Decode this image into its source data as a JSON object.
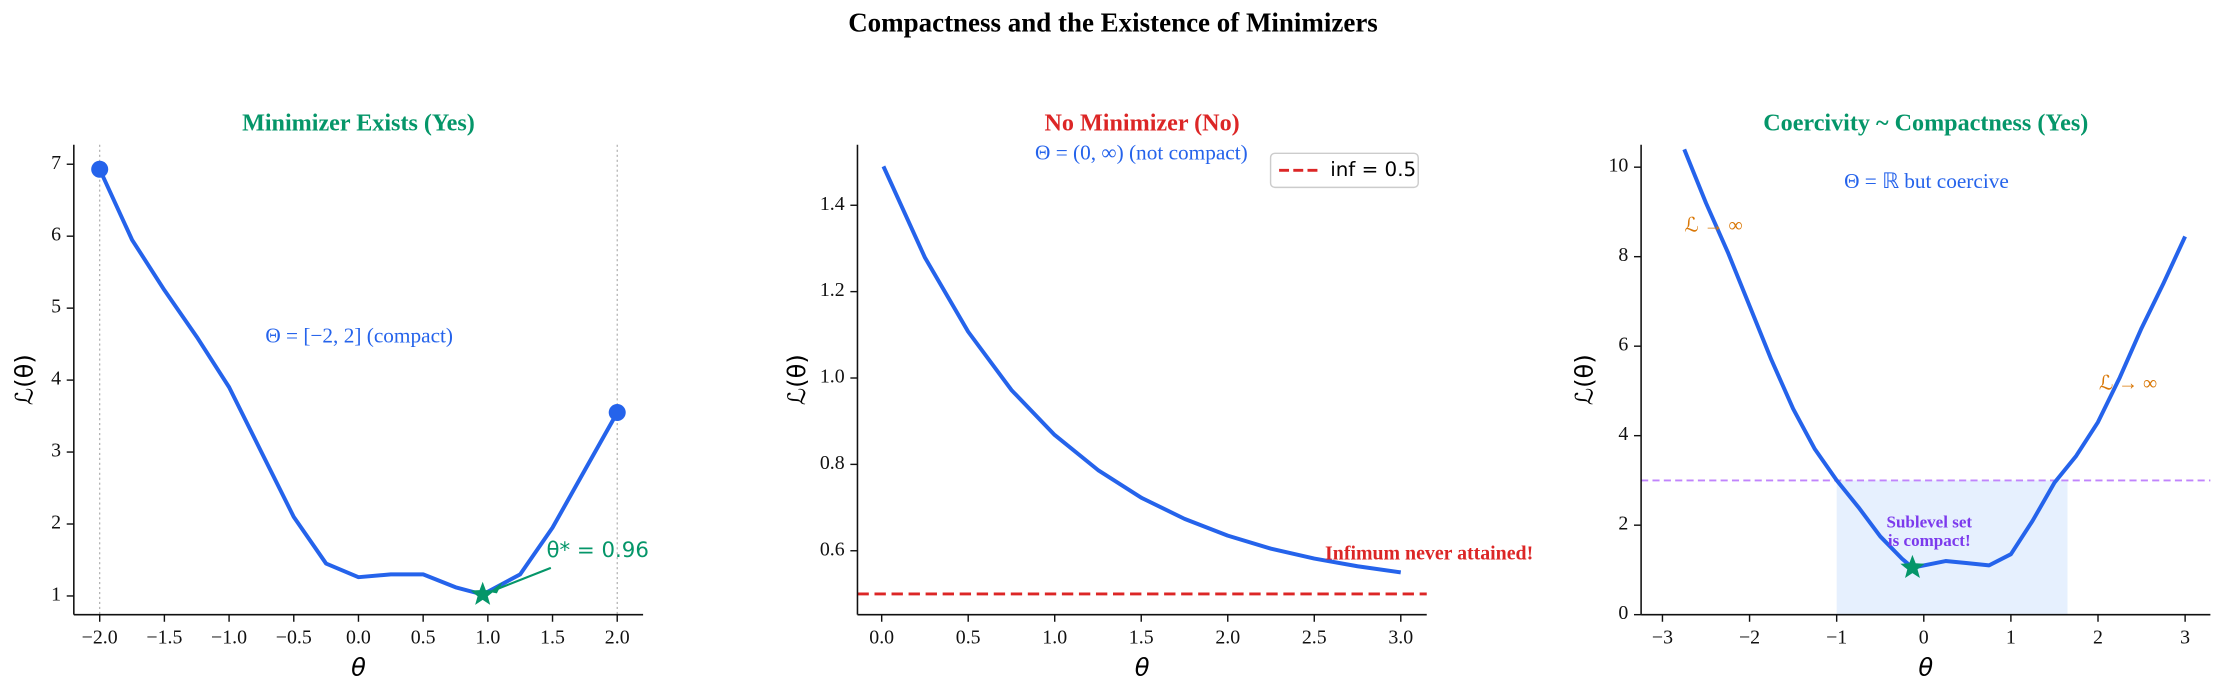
{
  "title": "Compactness and the Existence of Minimizers",
  "chart_data": [
    {
      "type": "line",
      "title": "Minimizer Exists (Yes)",
      "title_color": "#059669",
      "xlabel": "θ",
      "ylabel": "ℒ(θ)",
      "xlim": [
        -2.2,
        2.2
      ],
      "ylim": [
        0.74,
        7.27
      ],
      "xticks": [
        {
          "value": -2,
          "label": "−2.0"
        },
        {
          "value": -1.5,
          "label": "−1.5"
        },
        {
          "value": -1,
          "label": "−1.0"
        },
        {
          "value": -0.5,
          "label": "−0.5"
        },
        {
          "value": 0,
          "label": "0.0"
        },
        0.5,
        {
          "value": 1,
          "label": "1.0"
        },
        1.5,
        {
          "value": 2,
          "label": "2.0"
        }
      ],
      "yticks": [
        1,
        2,
        3,
        4,
        5,
        6,
        7
      ],
      "vlines": [
        -2,
        2
      ],
      "series": [
        {
          "kind": "line",
          "color": "#2563eb",
          "x": [
            -2,
            -1.75,
            -1.5,
            -1.25,
            -1,
            -0.75,
            -0.5,
            -0.25,
            0,
            0.25,
            0.5,
            0.75,
            0.96,
            1.25,
            1.5,
            1.75,
            2
          ],
          "values": [
            6.93,
            5.95,
            5.25,
            4.6,
            3.9,
            3.0,
            2.1,
            1.45,
            1.26,
            1.3,
            1.3,
            1.12,
            1.02,
            1.3,
            1.95,
            2.75,
            3.55
          ]
        },
        {
          "kind": "points",
          "color": "#2563eb",
          "x": [
            -2,
            2
          ],
          "values": [
            6.93,
            3.55
          ]
        },
        {
          "kind": "star",
          "color": "#059669",
          "x": [
            0.96
          ],
          "values": [
            1.02
          ]
        }
      ],
      "annotations": [
        {
          "text": "Θ = [−2, 2] (compact)",
          "color": "#2563eb"
        },
        {
          "text": "θ* = 0.96",
          "color": "#059669"
        }
      ]
    },
    {
      "type": "line",
      "title": "No Minimizer (No)",
      "title_color": "#dc2626",
      "xlabel": "θ",
      "ylabel": "ℒ(θ)",
      "xlim": [
        -0.14,
        3.15
      ],
      "ylim": [
        0.452,
        1.54
      ],
      "xticks": [
        {
          "value": 0,
          "label": "0.0"
        },
        0.5,
        {
          "value": 1,
          "label": "1.0"
        },
        1.5,
        {
          "value": 2,
          "label": "2.0"
        },
        2.5,
        {
          "value": 3,
          "label": "3.0"
        }
      ],
      "yticks": [
        0.6,
        0.8,
        {
          "value": 1,
          "label": "1.0"
        },
        1.2,
        1.4
      ],
      "hlines": [
        {
          "value": 0.5,
          "color": "#dc2626",
          "name": "inf = 0.5"
        }
      ],
      "legend": "upper right",
      "series": [
        {
          "kind": "line",
          "color": "#2563eb",
          "x": [
            0.01,
            0.25,
            0.5,
            0.75,
            1,
            1.25,
            1.5,
            1.75,
            2,
            2.25,
            2.5,
            2.75,
            3
          ],
          "values": [
            1.49,
            1.279,
            1.107,
            0.972,
            0.868,
            0.787,
            0.723,
            0.674,
            0.635,
            0.605,
            0.582,
            0.564,
            0.55
          ]
        }
      ],
      "annotations": [
        {
          "text": "Θ = (0, ∞) (not compact)",
          "color": "#2563eb"
        },
        {
          "text": "Infimum never attained!",
          "color": "#dc2626"
        }
      ]
    },
    {
      "type": "line",
      "title": "Coercivity ~ Compactness (Yes)",
      "title_color": "#059669",
      "xlabel": "θ",
      "ylabel": "ℒ(θ)",
      "xlim": [
        -3.245,
        3.29
      ],
      "ylim": [
        0,
        10.5
      ],
      "xticks": [
        {
          "value": -3,
          "label": "−3"
        },
        {
          "value": -2,
          "label": "−2"
        },
        {
          "value": -1,
          "label": "−1"
        },
        0,
        1,
        2,
        3
      ],
      "yticks": [
        0,
        2,
        4,
        6,
        8,
        10
      ],
      "hlines": [
        {
          "value": 3,
          "color": "#c084fc"
        }
      ],
      "fill_between": {
        "x": [
          -1.0,
          1.65
        ],
        "y": [
          0,
          3
        ],
        "color": "#dbeafe"
      },
      "series": [
        {
          "kind": "line",
          "color": "#2563eb",
          "x": [
            -2.75,
            -2.5,
            -2.25,
            -2,
            -1.75,
            -1.5,
            -1.25,
            -1,
            -0.75,
            -0.5,
            -0.25,
            -0.13,
            0,
            0.25,
            0.5,
            0.75,
            1,
            1.25,
            1.5,
            1.75,
            2,
            2.25,
            2.5,
            2.75,
            3
          ],
          "values": [
            10.4,
            9.2,
            8.1,
            6.9,
            5.7,
            4.6,
            3.7,
            3.0,
            2.4,
            1.75,
            1.25,
            1.05,
            1.1,
            1.2,
            1.15,
            1.1,
            1.35,
            2.1,
            2.95,
            3.55,
            4.3,
            5.3,
            6.4,
            7.4,
            8.45
          ]
        },
        {
          "kind": "star",
          "color": "#059669",
          "x": [
            -0.13
          ],
          "values": [
            1.05
          ]
        }
      ],
      "annotations": [
        {
          "text": "Θ = ℝ but coercive",
          "color": "#2563eb"
        },
        {
          "text": "ℒ → ∞",
          "color": "#d97706"
        },
        {
          "text": "ℒ → ∞",
          "color": "#d97706"
        },
        {
          "text": "Sublevel set",
          "color": "#7c3aed"
        },
        {
          "text": "is compact!",
          "color": "#7c3aed"
        }
      ]
    }
  ]
}
